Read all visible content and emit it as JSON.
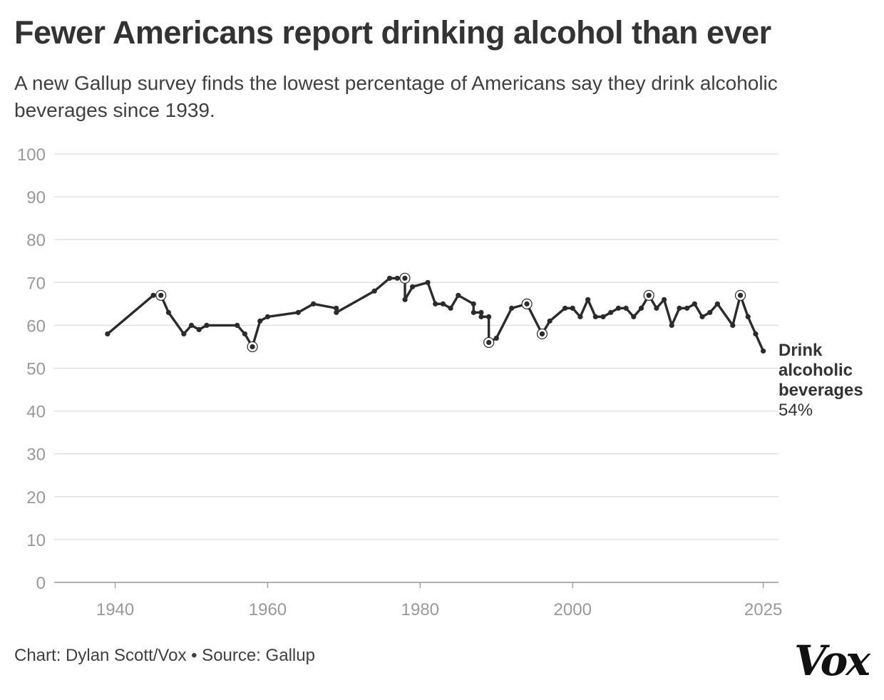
{
  "title": "Fewer Americans report drinking alcohol than ever",
  "subtitle": "A new Gallup survey finds the lowest percentage of Americans say they drink alcoholic beverages since 1939.",
  "footer": "Chart: Dylan Scott/Vox • Source: Gallup",
  "logo": "Vox",
  "chart_data": {
    "type": "line",
    "title": "Fewer Americans report drinking alcohol than ever",
    "subtitle": "A new Gallup survey finds the lowest percentage of Americans say they drink alcoholic beverages since 1939.",
    "xlabel": "",
    "ylabel": "",
    "xlim": [
      1932,
      2027
    ],
    "ylim": [
      0,
      100
    ],
    "xticks": [
      1940,
      1960,
      1980,
      2000,
      2025
    ],
    "yticks": [
      0,
      10,
      20,
      30,
      40,
      50,
      60,
      70,
      80,
      90,
      100
    ],
    "grid": "horizontal",
    "line_color": "#2b2b2b",
    "grid_color": "#dddddd",
    "series": [
      {
        "name": "Drink alcoholic beverages",
        "end_label_lines": [
          "Drink",
          "alcoholic",
          "beverages"
        ],
        "end_value_label": "54%",
        "x": [
          1939,
          1945,
          1946,
          1947,
          1949,
          1950,
          1951,
          1952,
          1956,
          1957,
          1958,
          1959,
          1960,
          1964,
          1966,
          1969,
          1969.01,
          1974,
          1976,
          1977,
          1978,
          1978.01,
          1979,
          1981,
          1982,
          1983,
          1984,
          1985,
          1987,
          1987.01,
          1988,
          1988.01,
          1989,
          1989.01,
          1990,
          1992,
          1994,
          1996,
          1997,
          1999,
          2000,
          2001,
          2002,
          2003,
          2004,
          2005,
          2006,
          2007,
          2008,
          2009,
          2010,
          2011,
          2012,
          2013,
          2014,
          2015,
          2016,
          2017,
          2018,
          2019,
          2021,
          2022,
          2023,
          2024,
          2025
        ],
        "values": [
          58,
          67,
          67,
          63,
          58,
          60,
          59,
          60,
          60,
          58,
          55,
          61,
          62,
          63,
          65,
          64,
          63,
          68,
          71,
          71,
          71,
          66,
          69,
          70,
          65,
          65,
          64,
          67,
          65,
          63,
          63,
          62,
          62,
          56,
          57,
          64,
          65,
          58,
          61,
          64,
          64,
          62,
          66,
          62,
          62,
          63,
          64,
          64,
          62,
          64,
          67,
          64,
          66,
          60,
          64,
          64,
          65,
          62,
          63,
          65,
          60,
          67,
          62,
          58,
          54
        ],
        "highlighted_x": [
          1946,
          1958,
          1978,
          1989.01,
          1994,
          1996,
          2010,
          2022
        ]
      }
    ]
  }
}
